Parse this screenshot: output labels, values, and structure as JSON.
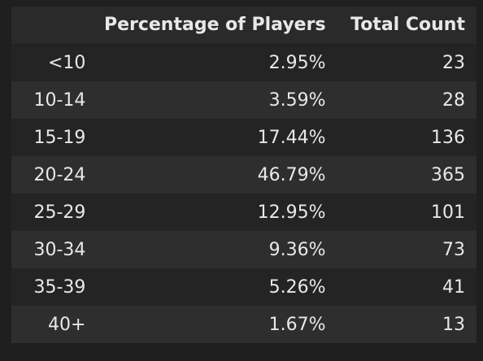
{
  "table": {
    "columns": [
      "",
      "Percentage of Players",
      "Total Count"
    ],
    "rows": [
      {
        "label": "<10",
        "percentage": "2.95%",
        "count": "23"
      },
      {
        "label": "10-14",
        "percentage": "3.59%",
        "count": "28"
      },
      {
        "label": "15-19",
        "percentage": "17.44%",
        "count": "136"
      },
      {
        "label": "20-24",
        "percentage": "46.79%",
        "count": "365"
      },
      {
        "label": "25-29",
        "percentage": "12.95%",
        "count": "101"
      },
      {
        "label": "30-34",
        "percentage": "9.36%",
        "count": "73"
      },
      {
        "label": "35-39",
        "percentage": "5.26%",
        "count": "41"
      },
      {
        "label": "40+",
        "percentage": "1.67%",
        "count": "13"
      }
    ]
  },
  "colors": {
    "background": "#1f1f1f",
    "header_background": "#2a2a2a",
    "row_odd": "#242424",
    "row_even": "#2e2e2e",
    "text": "#e8e8e8"
  }
}
